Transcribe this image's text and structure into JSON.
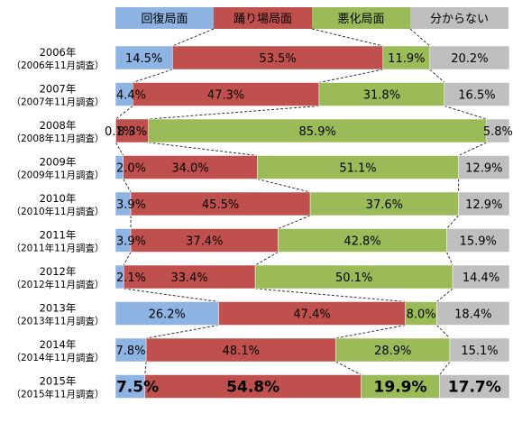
{
  "chart_data": {
    "type": "bar",
    "orientation": "horizontal",
    "stacked": "100%",
    "legend_position": "top",
    "grid": false,
    "categories": [
      {
        "year": "2006年",
        "survey": "（2006年11月調査）"
      },
      {
        "year": "2007年",
        "survey": "（2007年11月調査）"
      },
      {
        "year": "2008年",
        "survey": "（2008年11月調査）"
      },
      {
        "year": "2009年",
        "survey": "（2009年11月調査）"
      },
      {
        "year": "2010年",
        "survey": "（2010年11月調査）"
      },
      {
        "year": "2011年",
        "survey": "（2011年11月調査）"
      },
      {
        "year": "2012年",
        "survey": "（2012年11月調査）"
      },
      {
        "year": "2013年",
        "survey": "（2013年11月調査）"
      },
      {
        "year": "2014年",
        "survey": "（2014年11月調査）"
      },
      {
        "year": "2015年",
        "survey": "（2015年11月調査）"
      }
    ],
    "series": [
      {
        "name": "回復局面",
        "color": "#8EB4E3",
        "values": [
          14.5,
          4.4,
          0.1,
          2.0,
          3.9,
          3.9,
          2.1,
          26.2,
          7.8,
          7.5
        ],
        "labels": [
          "14.5%",
          "4.4%",
          "0.1%",
          "2.0%",
          "3.9%",
          "3.9%",
          "2.1%",
          "26.2%",
          "7.8%",
          "7.5%"
        ]
      },
      {
        "name": "踊り場局面",
        "color": "#C0504D",
        "values": [
          53.5,
          47.3,
          8.3,
          34.0,
          45.5,
          37.4,
          33.4,
          47.4,
          48.1,
          54.8
        ],
        "labels": [
          "53.5%",
          "47.3%",
          "8.3%",
          "34.0%",
          "45.5%",
          "37.4%",
          "33.4%",
          "47.4%",
          "48.1%",
          "54.8%"
        ]
      },
      {
        "name": "悪化局面",
        "color": "#9BBB59",
        "values": [
          11.9,
          31.8,
          85.9,
          51.1,
          37.6,
          42.8,
          50.1,
          8.0,
          28.9,
          19.9
        ],
        "labels": [
          "11.9%",
          "31.8%",
          "85.9%",
          "51.1%",
          "37.6%",
          "42.8%",
          "50.1%",
          "8.0%",
          "28.9%",
          "19.9%"
        ]
      },
      {
        "name": "分からない",
        "color": "#BFBFBF",
        "values": [
          20.2,
          16.5,
          5.8,
          12.9,
          12.9,
          15.9,
          14.4,
          18.4,
          15.1,
          17.7
        ],
        "labels": [
          "20.2%",
          "16.5%",
          "5.8%",
          "12.9%",
          "12.9%",
          "15.9%",
          "14.4%",
          "18.4%",
          "15.1%",
          "17.7%"
        ]
      }
    ]
  }
}
